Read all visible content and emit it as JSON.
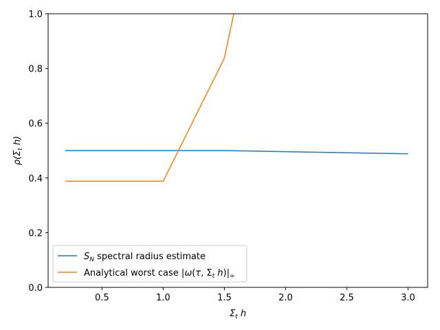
{
  "chart_data": {
    "type": "line",
    "title": "",
    "xlabel": "Σt h",
    "ylabel": "ρ(Σt h)",
    "xlim": [
      0.06,
      3.16
    ],
    "ylim": [
      0.0,
      1.0
    ],
    "xticks": [
      0.5,
      1.0,
      1.5,
      2.0,
      2.5,
      3.0
    ],
    "xtick_labels": [
      "0.5",
      "1.0",
      "1.5",
      "2.0",
      "2.5",
      "3.0"
    ],
    "yticks": [
      0.0,
      0.2,
      0.4,
      0.6,
      0.8,
      1.0
    ],
    "ytick_labels": [
      "0.0",
      "0.2",
      "0.4",
      "0.6",
      "0.8",
      "1.0"
    ],
    "grid": false,
    "legend_position": "lower-left",
    "series": [
      {
        "name": "SN spectral radius estimate",
        "color": "#1f77b4",
        "x": [
          0.2,
          1.0,
          1.5,
          2.0,
          3.0
        ],
        "y": [
          0.5,
          0.5,
          0.5,
          0.496,
          0.488
        ]
      },
      {
        "name": "Analytical worst case |ω(τ, Σt h)|∞",
        "color": "#ff7f0e",
        "x": [
          0.2,
          1.0,
          1.5,
          2.0
        ],
        "y": [
          0.388,
          0.388,
          0.838,
          1.9
        ]
      }
    ]
  }
}
